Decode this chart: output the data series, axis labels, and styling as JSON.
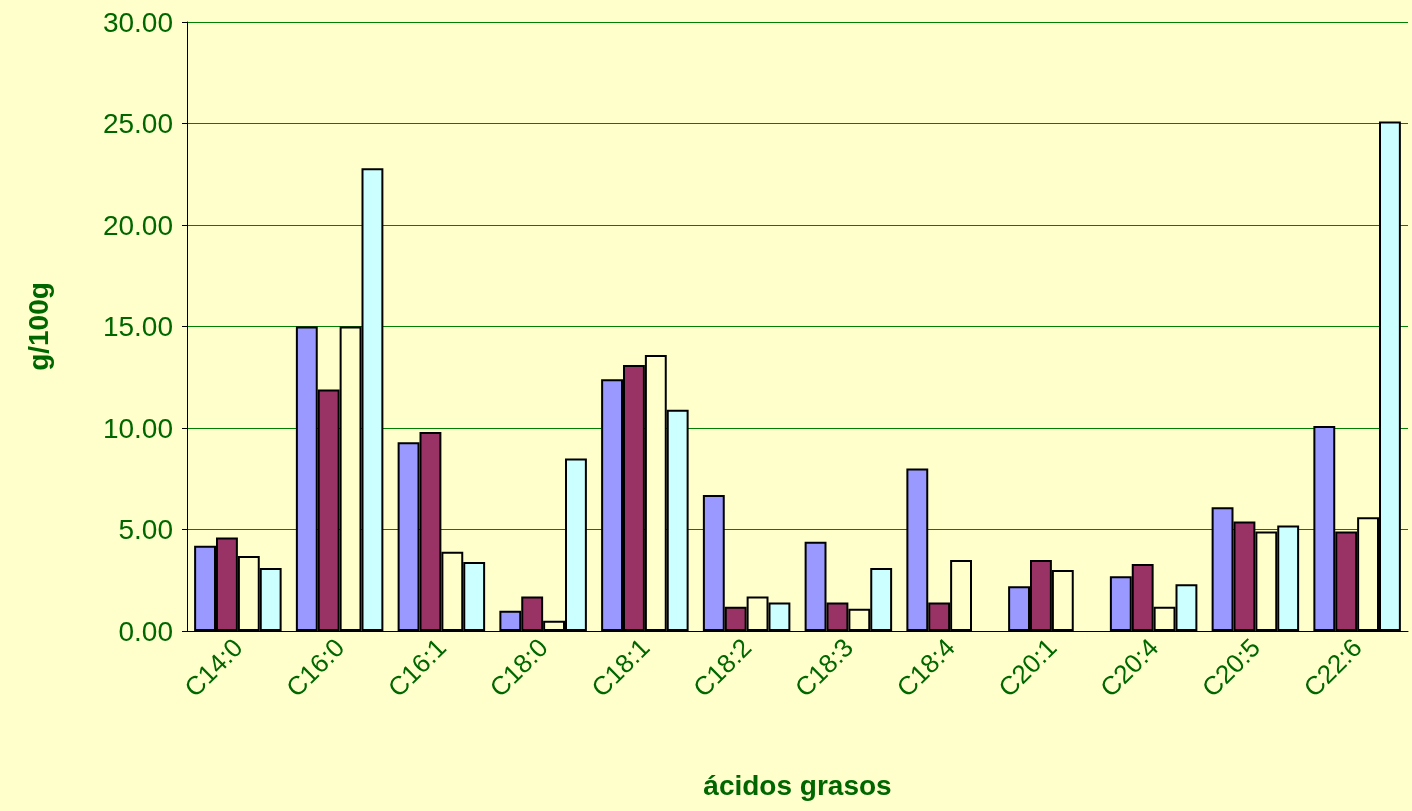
{
  "chart_data": {
    "type": "bar",
    "xlabel": "ácidos grasos",
    "ylabel": "g/100g",
    "categories": [
      "C14:0",
      "C16:0",
      "C16:1",
      "C18:0",
      "C18:1",
      "C18:2",
      "C18:3",
      "C18:4",
      "C20:1",
      "C20:4",
      "C20:5",
      "C22:6"
    ],
    "series": [
      {
        "color": "#9999ff",
        "values": [
          4.2,
          15.0,
          9.3,
          1.0,
          12.4,
          6.7,
          4.4,
          8.0,
          2.2,
          2.7,
          6.1,
          10.1
        ]
      },
      {
        "color": "#993366",
        "values": [
          4.6,
          11.9,
          9.8,
          1.7,
          13.1,
          1.2,
          1.4,
          1.4,
          3.5,
          3.3,
          5.4,
          4.9
        ]
      },
      {
        "color": "#ffffcc",
        "values": [
          3.7,
          15.0,
          3.9,
          0.5,
          13.6,
          1.7,
          1.1,
          3.5,
          3.0,
          1.2,
          4.9,
          5.6
        ]
      },
      {
        "color": "#ccffff",
        "values": [
          3.1,
          22.8,
          3.4,
          8.5,
          10.9,
          1.4,
          3.1,
          null,
          null,
          2.3,
          5.2,
          25.1
        ]
      }
    ],
    "ylim": [
      0,
      30
    ],
    "yticks": [
      {
        "value": 0,
        "label": "0.00"
      },
      {
        "value": 5,
        "label": "5.00"
      },
      {
        "value": 10,
        "label": "10.00"
      },
      {
        "value": 15,
        "label": "15.00"
      },
      {
        "value": 20,
        "label": "20.00"
      },
      {
        "value": 25,
        "label": "25.00"
      },
      {
        "value": 30,
        "label": "30.00"
      }
    ],
    "grid": "y"
  }
}
